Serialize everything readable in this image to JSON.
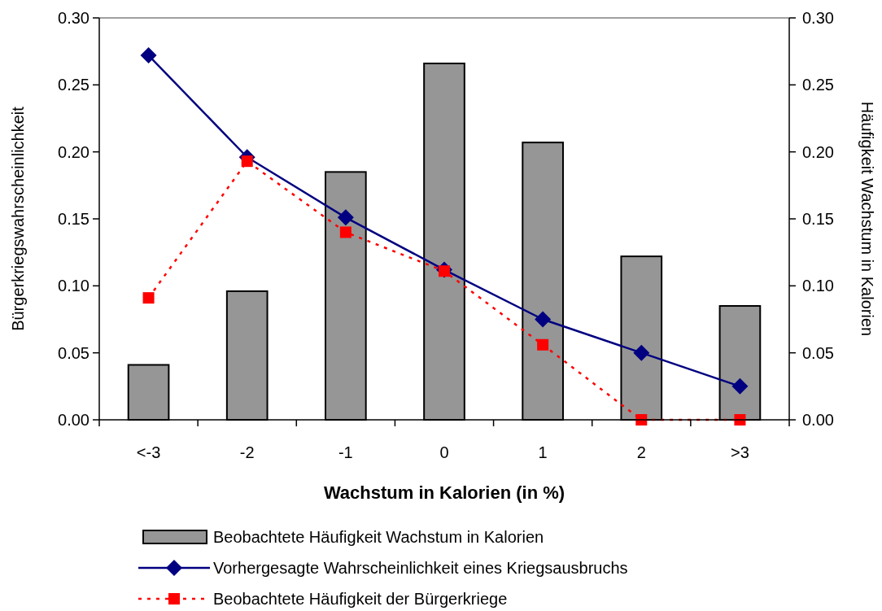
{
  "chart_data": {
    "type": "bar",
    "xlabel": "Wachstum in Kalorien (in %)",
    "ylabel": "Bürgerkriegswahrscheinlichkeit",
    "y2label": "Häufigkeit Wachstum in Kalorien",
    "categories": [
      "<-3",
      "-2",
      "-1",
      "0",
      "1",
      "2",
      ">3"
    ],
    "series": [
      {
        "name": "Beobachtete Häufigkeit Wachstum in Kalorien",
        "axis": "y2",
        "color": "#969696",
        "values": [
          0.041,
          0.096,
          0.185,
          0.266,
          0.207,
          0.122,
          0.085
        ]
      },
      {
        "name": "Vorhergesagte Wahrscheinlichkeit eines Kriegsausbruchs",
        "type": "line",
        "color": "#000080",
        "marker": "diamond",
        "line_style": "solid",
        "values": [
          0.272,
          0.196,
          0.151,
          0.112,
          0.075,
          0.05,
          0.025
        ]
      },
      {
        "name": "Beobachtete Häufigkeit der Bürgerkriege",
        "type": "line",
        "color": "#ff0000",
        "marker": "square",
        "line_style": "dotted",
        "values": [
          0.091,
          0.193,
          0.14,
          0.111,
          0.056,
          0,
          0
        ]
      }
    ],
    "ylim": [
      0,
      0.3
    ],
    "yticks": [
      {
        "value": 0,
        "label": "0.00"
      },
      {
        "value": 0.05,
        "label": "0.05"
      },
      {
        "value": 0.1,
        "label": "0.10"
      },
      {
        "value": 0.15,
        "label": "0.15"
      },
      {
        "value": 0.2,
        "label": "0.20"
      },
      {
        "value": 0.25,
        "label": "0.25"
      },
      {
        "value": 0.3,
        "label": "0.30"
      }
    ],
    "y2lim": [
      0,
      0.3
    ],
    "y2ticks": [
      {
        "value": 0,
        "label": "0.00"
      },
      {
        "value": 0.05,
        "label": "0.05"
      },
      {
        "value": 0.1,
        "label": "0.10"
      },
      {
        "value": 0.15,
        "label": "0.15"
      },
      {
        "value": 0.2,
        "label": "0.20"
      },
      {
        "value": 0.25,
        "label": "0.25"
      },
      {
        "value": 0.3,
        "label": "0.30"
      }
    ],
    "grid": false,
    "legend": "bottom"
  }
}
